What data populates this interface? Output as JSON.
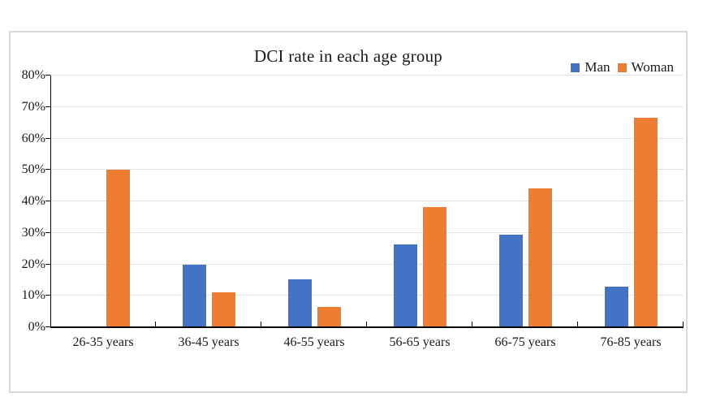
{
  "chart_data": {
    "type": "bar",
    "title": "DCI rate in each age group",
    "categories": [
      "26-35 years",
      "36-45 years",
      "46-55 years",
      "56-65 years",
      "66-75 years",
      "76-85 years"
    ],
    "series": [
      {
        "name": "Man",
        "color": "#4472C4",
        "values": [
          0,
          20,
          15.2,
          26.3,
          29.4,
          13
        ]
      },
      {
        "name": "Woman",
        "color": "#ED7D31",
        "values": [
          50,
          11.1,
          6.5,
          38.2,
          44.1,
          66.7
        ]
      }
    ],
    "ylim": [
      0,
      80
    ],
    "ytick_step": 10,
    "ytick_labels": [
      "0%",
      "10%",
      "20%",
      "30%",
      "40%",
      "50%",
      "60%",
      "70%",
      "80%"
    ],
    "grid": true,
    "legend_position": "top-right",
    "unit": "percent"
  },
  "colors": {
    "man": "#4472C4",
    "woman": "#ED7D31",
    "gridline": "#E2E2E2",
    "axis": "#000000",
    "frame_border": "#D9D9D9",
    "background": "#FFFFFF",
    "text": "#1A1A1A"
  }
}
